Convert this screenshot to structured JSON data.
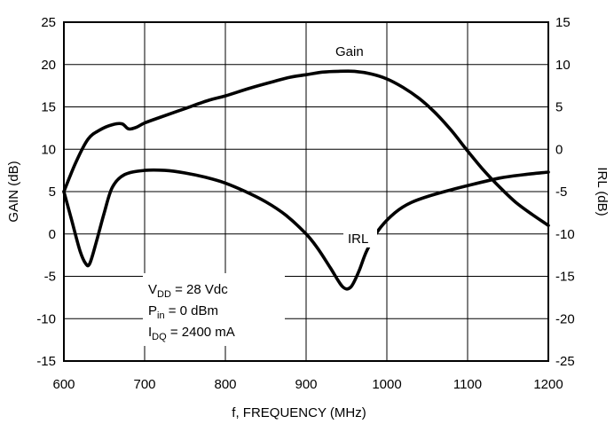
{
  "chart_data": {
    "type": "line",
    "xlabel": "f, FREQUENCY (MHz)",
    "ylabel": "GAIN (dB)",
    "y2label": "IRL (dB)",
    "xlim": [
      600,
      1200
    ],
    "ylim": [
      -15,
      25
    ],
    "y2lim": [
      -25,
      15
    ],
    "x_ticks": [
      600,
      700,
      800,
      900,
      1000,
      1100,
      1200
    ],
    "y_ticks": [
      25,
      20,
      15,
      10,
      5,
      0,
      -5,
      -10,
      -15
    ],
    "y2_ticks": [
      15,
      10,
      5,
      0,
      -5,
      -10,
      -15,
      -20,
      -25
    ],
    "grid": true,
    "series": [
      {
        "name": "Gain",
        "axis": "left",
        "x": [
          600,
          615,
          630,
          645,
          660,
          672,
          680,
          690,
          700,
          720,
          750,
          780,
          800,
          830,
          860,
          880,
          900,
          920,
          940,
          960,
          980,
          1000,
          1020,
          1040,
          1060,
          1080,
          1100,
          1120,
          1140,
          1160,
          1180,
          1200
        ],
        "values": [
          5,
          8.5,
          11.2,
          12.3,
          12.9,
          13,
          12.4,
          12.6,
          13.1,
          13.8,
          14.8,
          15.8,
          16.3,
          17.2,
          18,
          18.5,
          18.8,
          19.1,
          19.2,
          19.2,
          18.9,
          18.3,
          17.3,
          16,
          14.3,
          12.2,
          9.8,
          7.5,
          5.5,
          3.7,
          2.3,
          1
        ]
      },
      {
        "name": "IRL",
        "axis": "right",
        "x": [
          600,
          610,
          620,
          627,
          632,
          640,
          650,
          660,
          675,
          700,
          725,
          750,
          775,
          800,
          825,
          850,
          875,
          900,
          915,
          930,
          945,
          955,
          965,
          975,
          990,
          1010,
          1030,
          1060,
          1100,
          1140,
          1170,
          1200
        ],
        "values": [
          -5,
          -8.5,
          -12,
          -13.5,
          -13.5,
          -11,
          -7.5,
          -4.5,
          -3,
          -2.5,
          -2.5,
          -2.8,
          -3.3,
          -4,
          -5,
          -6.2,
          -7.8,
          -10,
          -11.8,
          -14,
          -16.2,
          -16.3,
          -14.5,
          -12,
          -9.5,
          -7.5,
          -6.3,
          -5.3,
          -4.3,
          -3.4,
          -3,
          -2.7
        ]
      }
    ],
    "annotations": {
      "gain_label": "Gain",
      "irl_label": "IRL",
      "vdd_main": "V",
      "vdd_sub": "DD",
      "vdd_rest": " = 28 Vdc",
      "pin_main": "P",
      "pin_sub": "in",
      "pin_rest": " = 0 dBm",
      "idq_main": "I",
      "idq_sub": "DQ",
      "idq_rest": " = 2400 mA"
    }
  }
}
